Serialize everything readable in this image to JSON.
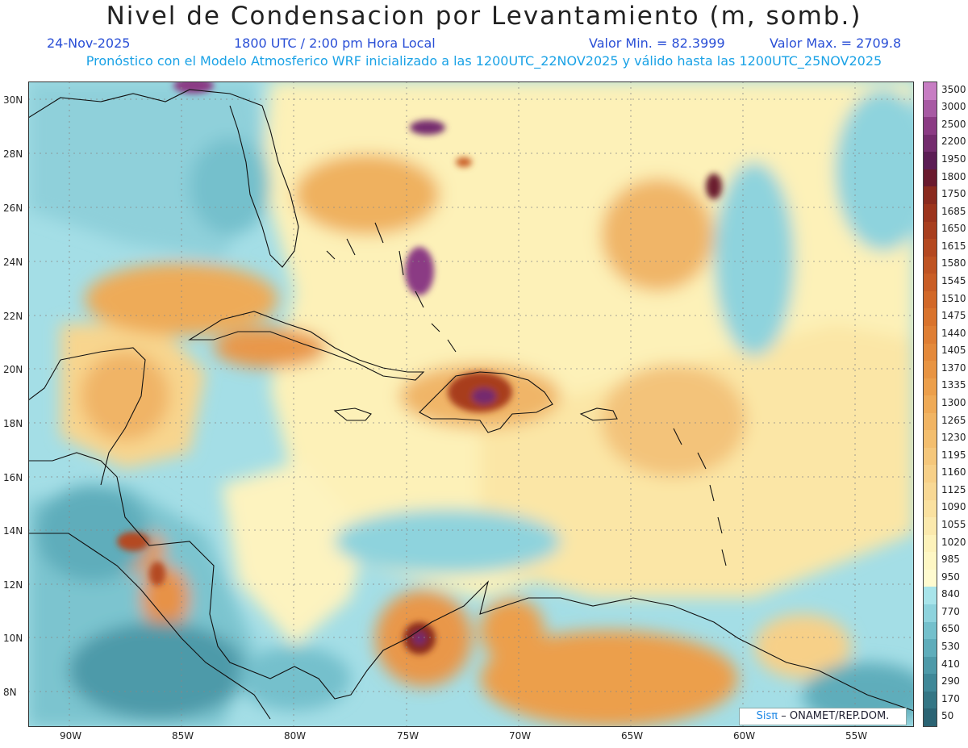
{
  "header": {
    "title": "Nivel de Condensacion por Levantamiento (m, somb.)",
    "date": "24-Nov-2025",
    "time": "1800 UTC / 2:00 pm Hora Local",
    "min": "Valor Min. = 82.3999",
    "max": "Valor Max. = 2709.8",
    "forecast_line": "Pronóstico con el Modelo Atmosferico WRF inicializado a las 1200UTC_22NOV2025 y válido hasta las  1200UTC_25NOV2025"
  },
  "axes": {
    "lat_labels": [
      "30N",
      "28N",
      "26N",
      "24N",
      "22N",
      "20N",
      "18N",
      "16N",
      "14N",
      "12N",
      "10N",
      "8N"
    ],
    "lon_labels": [
      "90W",
      "85W",
      "80W",
      "75W",
      "70W",
      "65W",
      "60W",
      "55W"
    ]
  },
  "legend": {
    "levels": [
      "3500",
      "3000",
      "2500",
      "2200",
      "1950",
      "1800",
      "1750",
      "1685",
      "1650",
      "1615",
      "1580",
      "1545",
      "1510",
      "1475",
      "1440",
      "1405",
      "1370",
      "1335",
      "1300",
      "1265",
      "1230",
      "1195",
      "1160",
      "1125",
      "1090",
      "1055",
      "1020",
      "985",
      "950",
      "840",
      "770",
      "650",
      "530",
      "410",
      "290",
      "170",
      "50"
    ],
    "colors": [
      "#c77dc3",
      "#a75aa3",
      "#8b3b84",
      "#742c6e",
      "#5c1d55",
      "#6a1a2e",
      "#8a2a1e",
      "#9c341c",
      "#a83e1e",
      "#b44820",
      "#bf5322",
      "#c95d25",
      "#d26828",
      "#d9732c",
      "#df7e33",
      "#e4893a",
      "#e89442",
      "#ec9f4b",
      "#efaa56",
      "#f1b462",
      "#f3be6e",
      "#f5c77b",
      "#f7d088",
      "#f8d894",
      "#fae1a0",
      "#fbe9ad",
      "#fdf2ba",
      "#fef7c4",
      "#fffbd0",
      "#a8e4ea",
      "#8ed3dd",
      "#74c0cc",
      "#5fadbb",
      "#4e9aa9",
      "#3f8898",
      "#347685",
      "#2b6474"
    ]
  },
  "credit": {
    "logo": "Sisπ",
    "text": "– ONAMET/REP.DOM."
  }
}
